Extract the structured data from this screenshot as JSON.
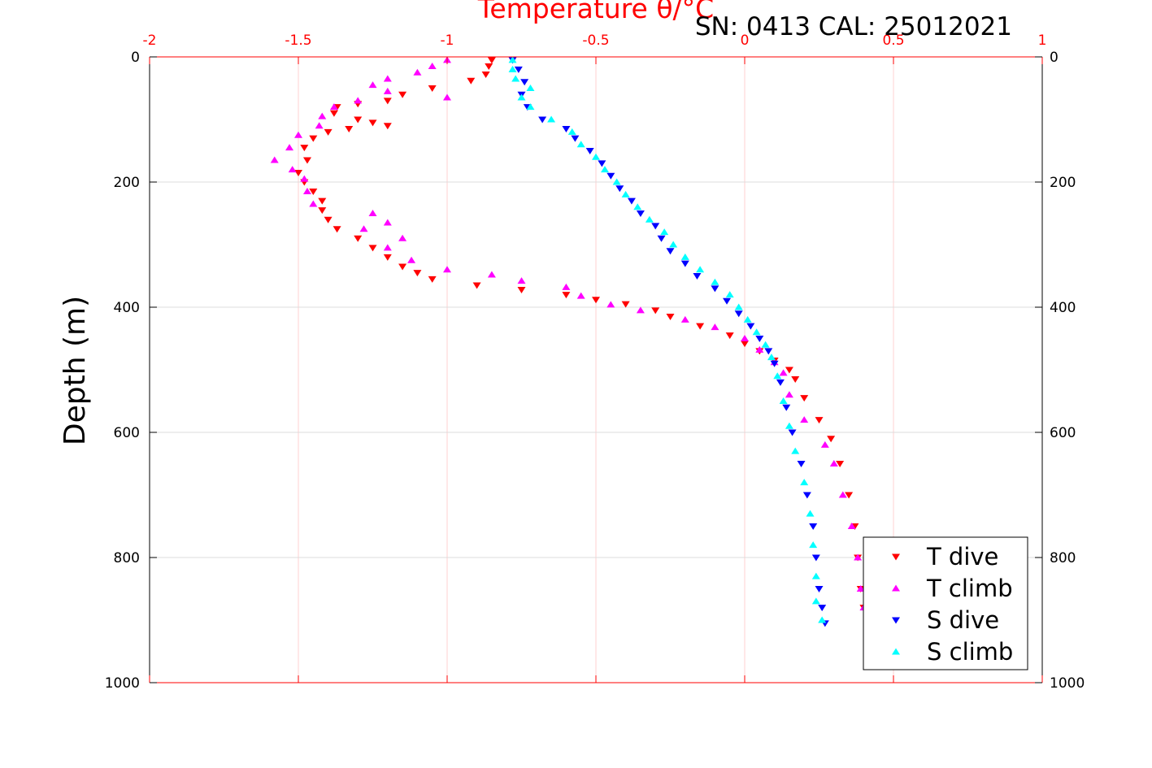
{
  "chart_data": {
    "type": "scatter",
    "title": "Temperature θ/°C",
    "annotation": "SN: 0413  CAL: 25012021",
    "ylabel": "Depth (m)",
    "xlim": [
      -2,
      1
    ],
    "ylim": [
      0,
      1000
    ],
    "y_inverted": true,
    "x_axis_position": "top",
    "xticks": [
      "-2",
      "-1.5",
      "-1",
      "-0.5",
      "0",
      "0.5",
      "1"
    ],
    "yticks": [
      "0",
      "200",
      "400",
      "600",
      "800",
      "1000"
    ],
    "grid": true,
    "legend_position": "bottom-right",
    "series": [
      {
        "name": "T dive",
        "marker": "triangle-down",
        "color": "#ff0000",
        "points": [
          [
            -0.85,
            5
          ],
          [
            -0.86,
            15
          ],
          [
            -0.87,
            28
          ],
          [
            -0.92,
            38
          ],
          [
            -1.05,
            50
          ],
          [
            -1.15,
            60
          ],
          [
            -1.2,
            70
          ],
          [
            -1.3,
            75
          ],
          [
            -1.37,
            80
          ],
          [
            -1.38,
            90
          ],
          [
            -1.3,
            100
          ],
          [
            -1.25,
            105
          ],
          [
            -1.2,
            110
          ],
          [
            -1.33,
            115
          ],
          [
            -1.4,
            120
          ],
          [
            -1.45,
            130
          ],
          [
            -1.48,
            145
          ],
          [
            -1.47,
            165
          ],
          [
            -1.5,
            185
          ],
          [
            -1.48,
            200
          ],
          [
            -1.45,
            215
          ],
          [
            -1.42,
            230
          ],
          [
            -1.42,
            245
          ],
          [
            -1.4,
            260
          ],
          [
            -1.37,
            275
          ],
          [
            -1.3,
            290
          ],
          [
            -1.25,
            305
          ],
          [
            -1.2,
            320
          ],
          [
            -1.15,
            335
          ],
          [
            -1.1,
            345
          ],
          [
            -1.05,
            355
          ],
          [
            -0.9,
            365
          ],
          [
            -0.75,
            372
          ],
          [
            -0.6,
            380
          ],
          [
            -0.5,
            388
          ],
          [
            -0.4,
            395
          ],
          [
            -0.3,
            405
          ],
          [
            -0.25,
            415
          ],
          [
            -0.15,
            430
          ],
          [
            -0.05,
            445
          ],
          [
            0.0,
            458
          ],
          [
            0.05,
            470
          ],
          [
            0.1,
            485
          ],
          [
            0.15,
            500
          ],
          [
            0.17,
            515
          ],
          [
            0.2,
            545
          ],
          [
            0.25,
            580
          ],
          [
            0.29,
            610
          ],
          [
            0.32,
            650
          ],
          [
            0.35,
            700
          ],
          [
            0.37,
            750
          ],
          [
            0.38,
            800
          ],
          [
            0.39,
            850
          ],
          [
            0.4,
            880
          ]
        ]
      },
      {
        "name": "T climb",
        "marker": "triangle-up",
        "color": "#ff00ff",
        "points": [
          [
            -1.0,
            5
          ],
          [
            -1.05,
            15
          ],
          [
            -1.1,
            25
          ],
          [
            -1.2,
            35
          ],
          [
            -1.25,
            45
          ],
          [
            -1.2,
            55
          ],
          [
            -1.0,
            65
          ],
          [
            -1.3,
            70
          ],
          [
            -1.38,
            80
          ],
          [
            -1.42,
            95
          ],
          [
            -1.43,
            110
          ],
          [
            -1.5,
            125
          ],
          [
            -1.53,
            145
          ],
          [
            -1.58,
            165
          ],
          [
            -1.52,
            180
          ],
          [
            -1.48,
            195
          ],
          [
            -1.47,
            215
          ],
          [
            -1.45,
            235
          ],
          [
            -1.25,
            250
          ],
          [
            -1.2,
            265
          ],
          [
            -1.28,
            275
          ],
          [
            -1.15,
            290
          ],
          [
            -1.2,
            305
          ],
          [
            -1.12,
            325
          ],
          [
            -1.0,
            340
          ],
          [
            -0.85,
            348
          ],
          [
            -0.75,
            358
          ],
          [
            -0.6,
            368
          ],
          [
            -0.55,
            382
          ],
          [
            -0.45,
            396
          ],
          [
            -0.35,
            405
          ],
          [
            -0.2,
            420
          ],
          [
            -0.1,
            432
          ],
          [
            0.0,
            450
          ],
          [
            0.05,
            468
          ],
          [
            0.1,
            488
          ],
          [
            0.13,
            505
          ],
          [
            0.15,
            540
          ],
          [
            0.2,
            580
          ],
          [
            0.27,
            620
          ],
          [
            0.3,
            650
          ],
          [
            0.33,
            700
          ],
          [
            0.36,
            750
          ],
          [
            0.38,
            800
          ],
          [
            0.39,
            850
          ],
          [
            0.4,
            880
          ]
        ]
      },
      {
        "name": "S dive",
        "marker": "triangle-down",
        "color": "#0000ff",
        "points": [
          [
            -0.78,
            5
          ],
          [
            -0.76,
            20
          ],
          [
            -0.74,
            40
          ],
          [
            -0.75,
            60
          ],
          [
            -0.73,
            80
          ],
          [
            -0.68,
            100
          ],
          [
            -0.6,
            115
          ],
          [
            -0.57,
            130
          ],
          [
            -0.52,
            150
          ],
          [
            -0.48,
            170
          ],
          [
            -0.45,
            190
          ],
          [
            -0.42,
            210
          ],
          [
            -0.38,
            230
          ],
          [
            -0.35,
            250
          ],
          [
            -0.3,
            270
          ],
          [
            -0.28,
            290
          ],
          [
            -0.25,
            310
          ],
          [
            -0.2,
            330
          ],
          [
            -0.16,
            350
          ],
          [
            -0.1,
            370
          ],
          [
            -0.06,
            390
          ],
          [
            -0.02,
            410
          ],
          [
            0.02,
            430
          ],
          [
            0.05,
            450
          ],
          [
            0.08,
            470
          ],
          [
            0.1,
            490
          ],
          [
            0.12,
            520
          ],
          [
            0.14,
            560
          ],
          [
            0.16,
            600
          ],
          [
            0.19,
            650
          ],
          [
            0.21,
            700
          ],
          [
            0.23,
            750
          ],
          [
            0.24,
            800
          ],
          [
            0.25,
            850
          ],
          [
            0.26,
            880
          ],
          [
            0.27,
            905
          ]
        ]
      },
      {
        "name": "S climb",
        "marker": "triangle-up",
        "color": "#00ffff",
        "points": [
          [
            -0.78,
            5
          ],
          [
            -0.78,
            20
          ],
          [
            -0.77,
            35
          ],
          [
            -0.72,
            50
          ],
          [
            -0.75,
            65
          ],
          [
            -0.72,
            80
          ],
          [
            -0.65,
            100
          ],
          [
            -0.58,
            120
          ],
          [
            -0.55,
            140
          ],
          [
            -0.5,
            160
          ],
          [
            -0.47,
            180
          ],
          [
            -0.43,
            200
          ],
          [
            -0.4,
            220
          ],
          [
            -0.36,
            240
          ],
          [
            -0.32,
            260
          ],
          [
            -0.27,
            280
          ],
          [
            -0.24,
            300
          ],
          [
            -0.2,
            320
          ],
          [
            -0.15,
            340
          ],
          [
            -0.1,
            360
          ],
          [
            -0.05,
            380
          ],
          [
            -0.02,
            400
          ],
          [
            0.01,
            420
          ],
          [
            0.04,
            440
          ],
          [
            0.07,
            460
          ],
          [
            0.09,
            480
          ],
          [
            0.11,
            510
          ],
          [
            0.13,
            550
          ],
          [
            0.15,
            590
          ],
          [
            0.17,
            630
          ],
          [
            0.2,
            680
          ],
          [
            0.22,
            730
          ],
          [
            0.23,
            780
          ],
          [
            0.24,
            830
          ],
          [
            0.24,
            870
          ],
          [
            0.26,
            900
          ]
        ]
      }
    ]
  }
}
